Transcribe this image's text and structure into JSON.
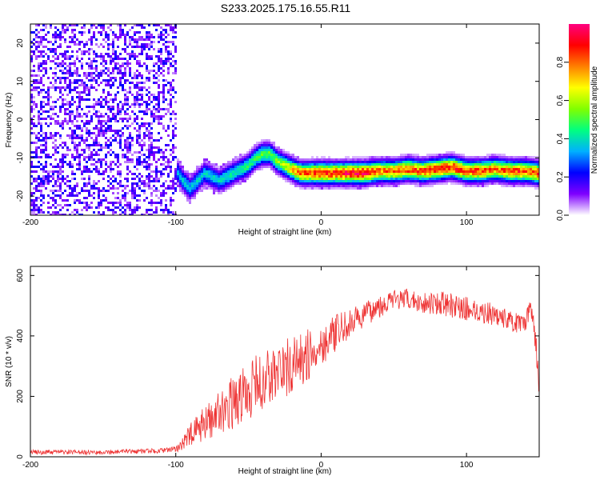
{
  "title": "S233.2025.175.16.55.R11",
  "chart_data": [
    {
      "type": "heatmap",
      "xlabel": "Height of straight line (km)",
      "ylabel": "Frequency (Hz)",
      "xlim": [
        -200,
        150
      ],
      "ylim": [
        -25,
        25
      ],
      "x_ticks": [
        -200,
        -100,
        0,
        100
      ],
      "y_ticks": [
        -20,
        -10,
        0,
        10,
        20
      ],
      "colorbar": {
        "label": "Normalized spectral amplitude",
        "range": [
          0,
          1
        ],
        "ticks": [
          "0.0",
          "0.2",
          "0.4",
          "0.6",
          "0.8"
        ],
        "colors": [
          "#ffffff",
          "#7f00ff",
          "#0000ff",
          "#00b0ff",
          "#00ff80",
          "#80ff00",
          "#ffff00",
          "#ff8000",
          "#ff0000",
          "#ff0080"
        ]
      },
      "noise_region_x": [
        -200,
        -100
      ],
      "noise_amplitude": 0.15,
      "ridge": {
        "x": [
          -105,
          -100,
          -95,
          -90,
          -85,
          -80,
          -75,
          -70,
          -65,
          -60,
          -55,
          -50,
          -45,
          -40,
          -35,
          -30,
          -25,
          -20,
          -15,
          -10,
          -5,
          0,
          10,
          20,
          30,
          40,
          50,
          60,
          70,
          80,
          90,
          100,
          110,
          120,
          130,
          140,
          150
        ],
        "freq": [
          -12,
          -13,
          -16,
          -18,
          -16,
          -14,
          -15,
          -16,
          -15,
          -14,
          -13,
          -12,
          -10,
          -9,
          -9,
          -11,
          -12,
          -13,
          -14,
          -14,
          -14,
          -14,
          -14,
          -14,
          -14,
          -13.5,
          -13.5,
          -13,
          -13.5,
          -13,
          -12.5,
          -13.5,
          -13.5,
          -13,
          -13.5,
          -13.5,
          -14
        ],
        "amplitude": [
          0.3,
          0.35,
          0.4,
          0.4,
          0.4,
          0.4,
          0.4,
          0.4,
          0.45,
          0.45,
          0.45,
          0.5,
          0.5,
          0.55,
          0.55,
          0.6,
          0.65,
          0.75,
          0.85,
          0.9,
          0.9,
          0.95,
          0.95,
          1.0,
          1.0,
          0.85,
          0.85,
          0.9,
          0.9,
          0.95,
          0.95,
          0.9,
          0.9,
          0.85,
          0.9,
          0.9,
          0.9
        ]
      }
    },
    {
      "type": "line",
      "xlabel": "Height of straight line (km)",
      "ylabel": "SNR (10 * v/v)",
      "xlim": [
        -200,
        150
      ],
      "ylim": [
        0,
        630
      ],
      "x_ticks": [
        -200,
        -100,
        0,
        100
      ],
      "y_ticks": [
        0,
        200,
        400,
        600
      ],
      "series": [
        {
          "color": "#ee3333",
          "x": [
            -200,
            -150,
            -110,
            -100,
            -90,
            -80,
            -70,
            -60,
            -50,
            -40,
            -30,
            -20,
            -10,
            0,
            10,
            20,
            30,
            40,
            50,
            60,
            70,
            80,
            90,
            100,
            110,
            120,
            130,
            140,
            145,
            150
          ],
          "trend": [
            15,
            15,
            20,
            25,
            70,
            110,
            150,
            180,
            220,
            250,
            280,
            300,
            330,
            370,
            410,
            440,
            470,
            500,
            520,
            520,
            510,
            510,
            500,
            490,
            480,
            470,
            450,
            430,
            500,
            250
          ],
          "spread": [
            8,
            8,
            8,
            10,
            40,
            60,
            70,
            90,
            100,
            100,
            100,
            100,
            90,
            70,
            60,
            50,
            40,
            40,
            35,
            35,
            35,
            40,
            40,
            40,
            40,
            35,
            35,
            35,
            40,
            60
          ]
        }
      ]
    }
  ]
}
